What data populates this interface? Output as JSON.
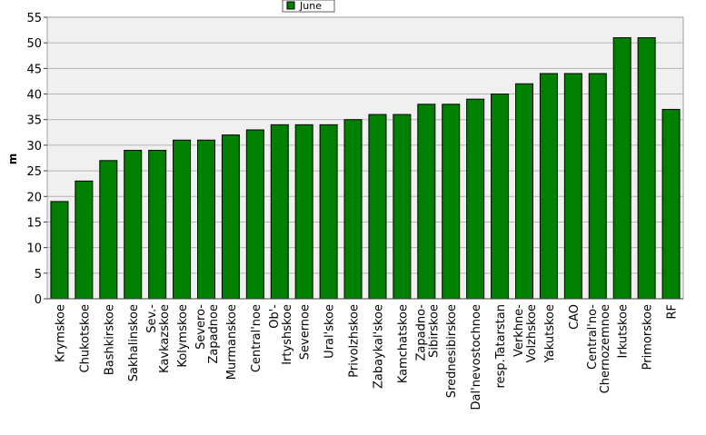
{
  "chart_data": {
    "type": "bar",
    "ylabel": "m",
    "ylim": [
      0,
      55
    ],
    "yticks": [
      0,
      5,
      10,
      15,
      20,
      25,
      30,
      35,
      40,
      45,
      50,
      55
    ],
    "grid": true,
    "legend_position": "top-center",
    "series": [
      {
        "name": "June",
        "color": "#008000"
      }
    ],
    "categories": [
      [
        "Krymskoe"
      ],
      [
        "Chukotskoe"
      ],
      [
        "Bashkirskoe"
      ],
      [
        "Sakhalinskoe"
      ],
      [
        "Sev.-",
        "Kavkazskoe"
      ],
      [
        "Kolymskoe"
      ],
      [
        "Severo-",
        "Zapadnoe"
      ],
      [
        "Murmanskoe"
      ],
      [
        "Central'noe"
      ],
      [
        "Ob'-",
        "Irtyshskoe"
      ],
      [
        "Severnoe"
      ],
      [
        "Ural'skoe"
      ],
      [
        "Privolzhskoe"
      ],
      [
        "Zabaykal'skoe"
      ],
      [
        "Kamchatskoe"
      ],
      [
        "Zapadno-",
        "Sibirskoe"
      ],
      [
        "Srednesibirskoe"
      ],
      [
        "Dal'nevostochnoe"
      ],
      [
        "resp.Tatarstan"
      ],
      [
        "Verkhne-",
        "Volzhskoe"
      ],
      [
        "Yakutskoe"
      ],
      [
        "CAO"
      ],
      [
        "Central'no-",
        "Chernozemnoe"
      ],
      [
        "Irkutskoe"
      ],
      [
        "Primorskoe"
      ],
      [
        "RF"
      ]
    ],
    "values": [
      19,
      23,
      27,
      29,
      29,
      31,
      31,
      32,
      33,
      34,
      34,
      34,
      35,
      36,
      36,
      38,
      38,
      39,
      40,
      42,
      44,
      44,
      44,
      51,
      51,
      37
    ]
  }
}
